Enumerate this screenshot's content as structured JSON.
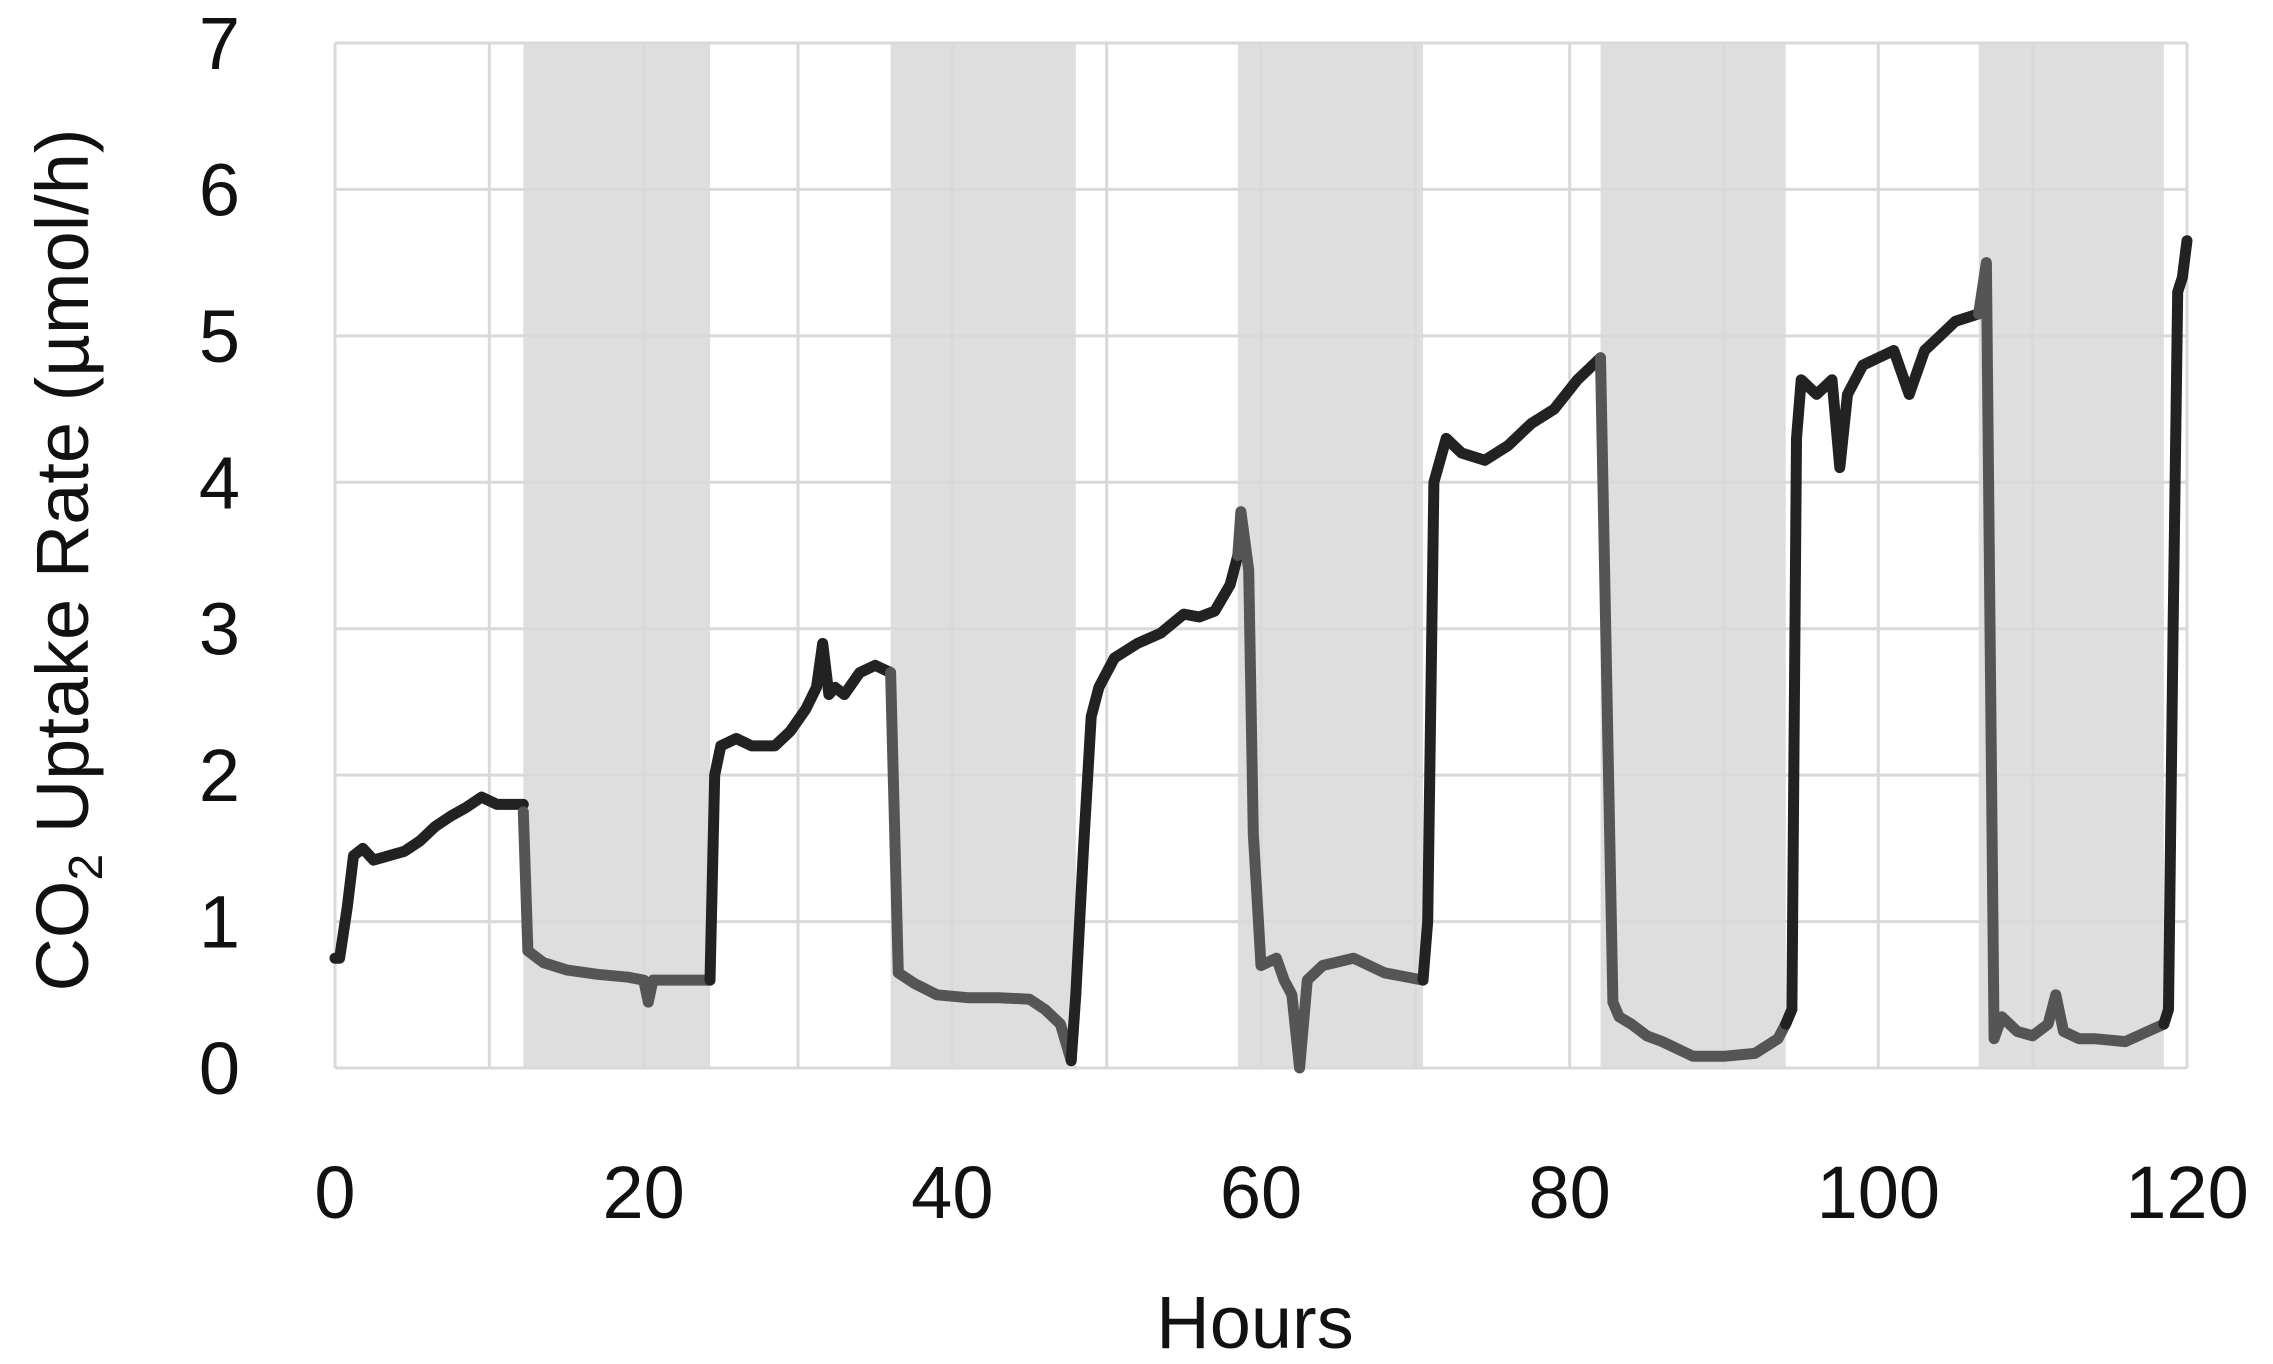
{
  "chart_data": {
    "type": "line",
    "title": "",
    "xlabel": "Hours",
    "ylabel": {
      "prefix": "CO",
      "subscript": "2",
      "suffix": " Uptake Rate (µmol/h)"
    },
    "xlim": [
      0,
      120
    ],
    "ylim": [
      0,
      7
    ],
    "xticks": [
      "0",
      "20",
      "40",
      "60",
      "80",
      "100",
      "120"
    ],
    "yticks": [
      "0",
      "1",
      "2",
      "3",
      "4",
      "5",
      "6",
      "7"
    ],
    "grid": true,
    "legend": "none",
    "dark_periods": [
      [
        12.2,
        24.3
      ],
      [
        36,
        48
      ],
      [
        58.5,
        70.5
      ],
      [
        82,
        94
      ],
      [
        106.5,
        118.5
      ]
    ],
    "colors": {
      "light_phase_line": "#222222",
      "dark_phase_line": "#555555",
      "dark_period_shading": "#dedede",
      "grid": "#d9d9d9"
    },
    "series": [
      {
        "phase": "light",
        "x": [
          0,
          0.3,
          0.8,
          1.2,
          1.8,
          2.5,
          3.5,
          4.5,
          5.5,
          6.5,
          7.5,
          8.5,
          9.5,
          10.5,
          11.5,
          12.2
        ],
        "y": [
          0.75,
          0.75,
          1.1,
          1.45,
          1.5,
          1.42,
          1.45,
          1.48,
          1.55,
          1.65,
          1.72,
          1.78,
          1.85,
          1.8,
          1.8,
          1.8
        ]
      },
      {
        "phase": "dark",
        "x": [
          12.2,
          12.5,
          13.5,
          15,
          17,
          19,
          20,
          20.3,
          20.6,
          22,
          24.3
        ],
        "y": [
          1.75,
          0.8,
          0.72,
          0.67,
          0.64,
          0.62,
          0.6,
          0.45,
          0.6,
          0.6,
          0.6
        ]
      },
      {
        "phase": "light",
        "x": [
          24.3,
          24.6,
          25,
          26,
          27,
          28.5,
          29.5,
          30.5,
          31.2,
          31.6,
          32,
          32.4,
          33,
          34,
          35,
          36
        ],
        "y": [
          0.6,
          2.0,
          2.2,
          2.25,
          2.2,
          2.2,
          2.3,
          2.45,
          2.6,
          2.9,
          2.55,
          2.6,
          2.55,
          2.7,
          2.75,
          2.7
        ]
      },
      {
        "phase": "dark",
        "x": [
          36,
          36.5,
          37.5,
          39,
          41,
          43,
          45,
          46,
          47,
          47.7
        ],
        "y": [
          2.7,
          0.65,
          0.58,
          0.5,
          0.48,
          0.48,
          0.47,
          0.4,
          0.3,
          0.05
        ]
      },
      {
        "phase": "light",
        "x": [
          47.7,
          48,
          48.5,
          49,
          49.5,
          50.5,
          52,
          53.5,
          55,
          56,
          57,
          58,
          58.5
        ],
        "y": [
          0.05,
          0.5,
          1.5,
          2.4,
          2.6,
          2.8,
          2.9,
          2.97,
          3.1,
          3.08,
          3.12,
          3.3,
          3.5
        ]
      },
      {
        "phase": "dark",
        "x": [
          58.5,
          58.7,
          59.2,
          59.5,
          60,
          61,
          61.5,
          62,
          62.5,
          63,
          64,
          66,
          68,
          70.5
        ],
        "y": [
          3.5,
          3.8,
          3.4,
          1.6,
          0.7,
          0.75,
          0.6,
          0.5,
          0,
          0.6,
          0.7,
          0.75,
          0.65,
          0.6
        ]
      },
      {
        "phase": "light",
        "x": [
          70.5,
          70.8,
          71.2,
          72,
          73,
          74.5,
          76,
          77.5,
          79,
          80.5,
          82
        ],
        "y": [
          0.6,
          1.0,
          4.0,
          4.3,
          4.2,
          4.15,
          4.25,
          4.4,
          4.5,
          4.7,
          4.85
        ]
      },
      {
        "phase": "dark",
        "x": [
          82,
          82.8,
          83.2,
          84,
          85,
          86,
          88,
          90,
          92,
          93.5,
          94
        ],
        "y": [
          4.85,
          0.45,
          0.35,
          0.3,
          0.22,
          0.18,
          0.08,
          0.08,
          0.1,
          0.2,
          0.3
        ]
      },
      {
        "phase": "light",
        "x": [
          94,
          94.4,
          94.7,
          95,
          96,
          97,
          97.5,
          98,
          99,
          100,
          101,
          102,
          103,
          104,
          105,
          106.5
        ],
        "y": [
          0.3,
          0.4,
          4.3,
          4.7,
          4.6,
          4.7,
          4.1,
          4.6,
          4.8,
          4.85,
          4.9,
          4.6,
          4.9,
          5.0,
          5.1,
          5.15
        ]
      },
      {
        "phase": "dark",
        "x": [
          106.5,
          107,
          107.5,
          108,
          109,
          110,
          111,
          111.5,
          112,
          113,
          114,
          116,
          118.5
        ],
        "y": [
          5.15,
          5.5,
          0.2,
          0.35,
          0.25,
          0.22,
          0.3,
          0.5,
          0.25,
          0.2,
          0.2,
          0.18,
          0.3
        ]
      },
      {
        "phase": "light",
        "x": [
          118.5,
          118.8,
          119.1,
          119.4,
          119.7,
          120
        ],
        "y": [
          0.3,
          0.4,
          3.0,
          5.3,
          5.4,
          5.65
        ]
      }
    ]
  }
}
